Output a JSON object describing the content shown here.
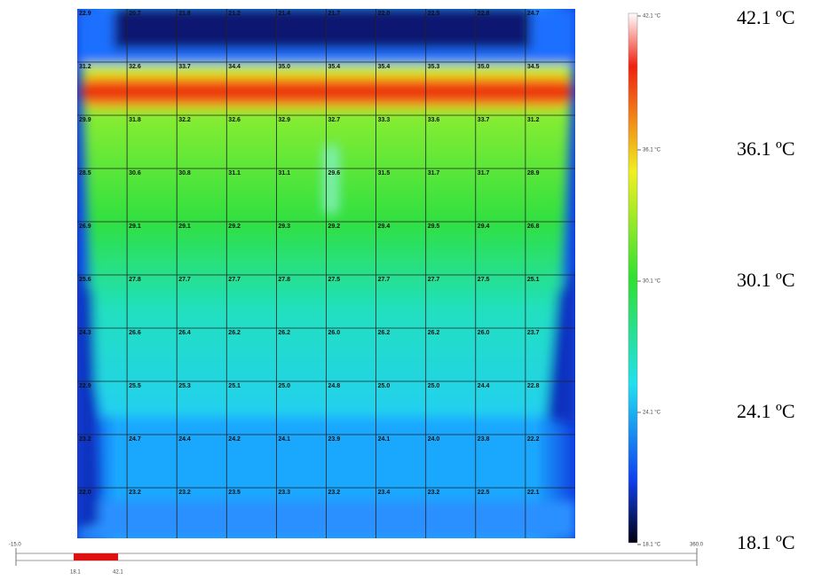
{
  "thermal_grid": {
    "rows": [
      [
        "22.9",
        "20.7",
        "21.8",
        "21.2",
        "21.4",
        "21.7",
        "22.0",
        "22.5",
        "22.8",
        "24.7"
      ],
      [
        "31.2",
        "32.6",
        "33.7",
        "34.4",
        "35.0",
        "35.4",
        "35.4",
        "35.3",
        "35.0",
        "34.5"
      ],
      [
        "29.9",
        "31.8",
        "32.2",
        "32.6",
        "32.9",
        "32.7",
        "33.3",
        "33.6",
        "33.7",
        "31.2"
      ],
      [
        "28.5",
        "30.6",
        "30.8",
        "31.1",
        "31.1",
        "29.6",
        "31.5",
        "31.7",
        "31.7",
        "28.9"
      ],
      [
        "26.9",
        "29.1",
        "29.1",
        "29.2",
        "29.3",
        "29.2",
        "29.4",
        "29.5",
        "29.4",
        "26.8"
      ],
      [
        "25.6",
        "27.8",
        "27.7",
        "27.7",
        "27.8",
        "27.5",
        "27.7",
        "27.7",
        "27.5",
        "25.1"
      ],
      [
        "24.3",
        "26.6",
        "26.4",
        "26.2",
        "26.2",
        "26.0",
        "26.2",
        "26.2",
        "26.0",
        "23.7"
      ],
      [
        "22.9",
        "25.5",
        "25.3",
        "25.1",
        "25.0",
        "24.8",
        "25.0",
        "25.0",
        "24.4",
        "22.8"
      ],
      [
        "23.2",
        "24.7",
        "24.4",
        "24.2",
        "24.1",
        "23.9",
        "24.1",
        "24.0",
        "23.8",
        "22.2"
      ],
      [
        "22.0",
        "23.2",
        "23.2",
        "23.5",
        "23.3",
        "23.2",
        "23.4",
        "23.2",
        "22.5",
        "22.1"
      ]
    ]
  },
  "color_scale": {
    "labels": [
      "42.1 °C",
      "36.1 °C",
      "30.1 °C",
      "24.1 °C",
      "18.1 °C"
    ]
  },
  "scale_legend": {
    "labels": [
      "42.1 ºC",
      "36.1 ºC",
      "30.1 ºC",
      "24.1 ºC",
      "18.1 ºC"
    ]
  },
  "range_slider": {
    "min": "-15.0",
    "max": "360.0",
    "low": "18.1",
    "high": "42.1"
  }
}
